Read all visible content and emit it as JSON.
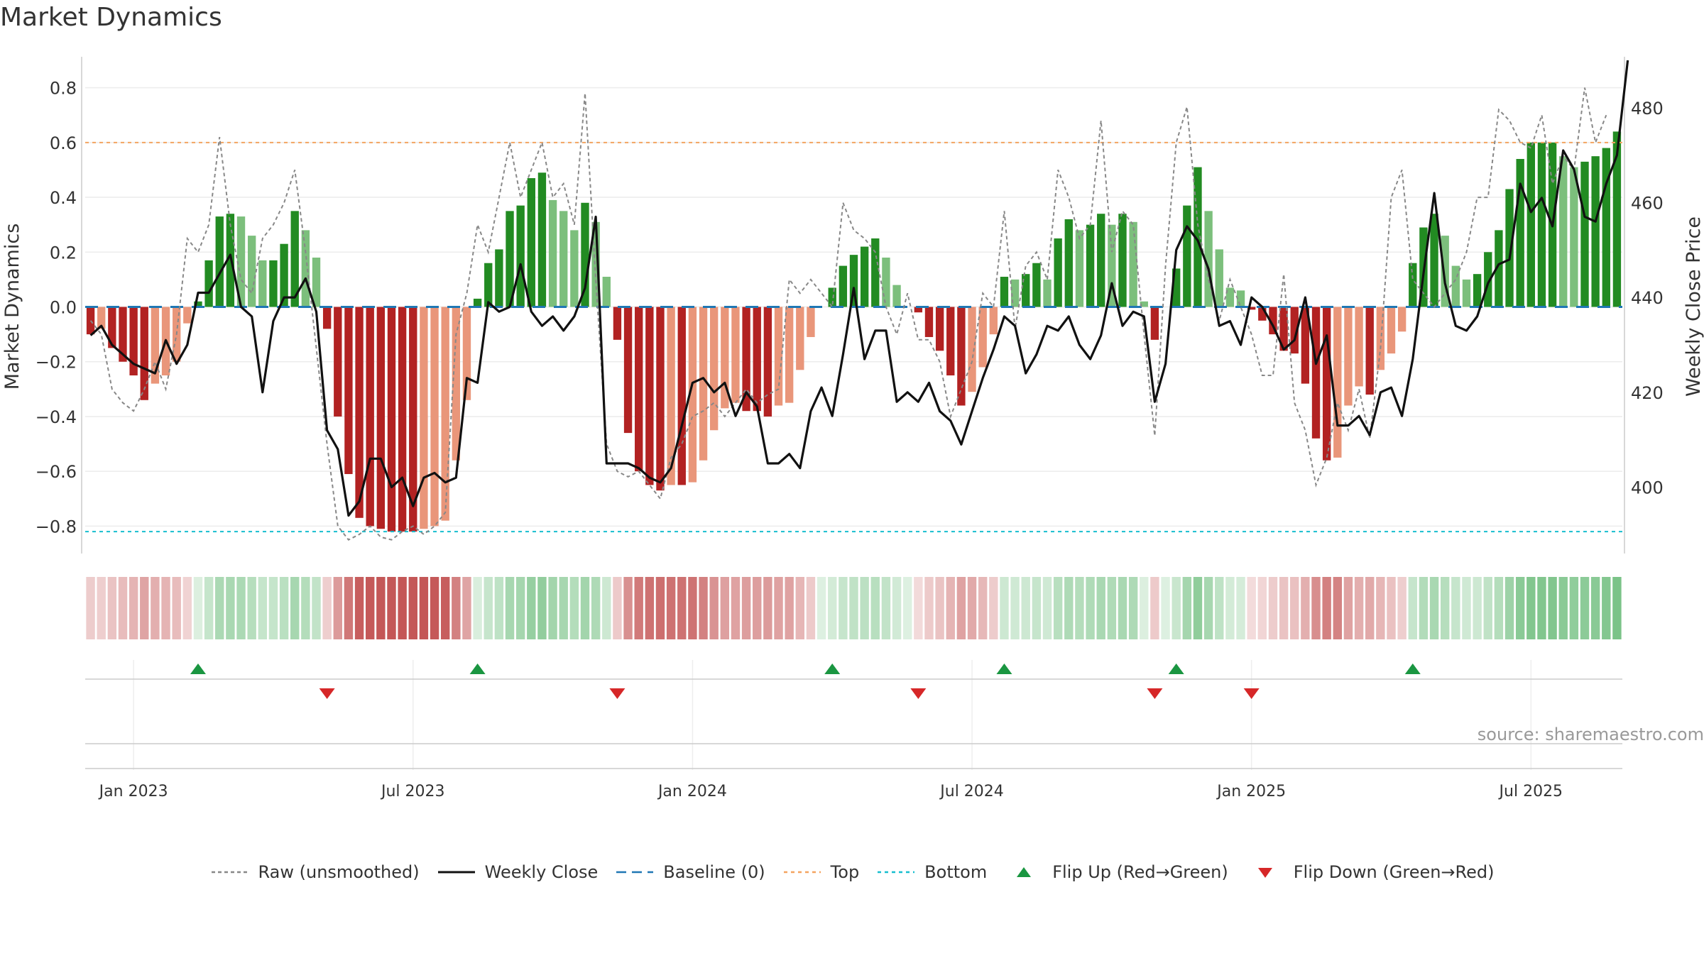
{
  "title": "Market Dynamics",
  "source": "source: sharemaestro.com",
  "colors": {
    "strong_green": "#228b22",
    "light_green": "#7cbf7c",
    "strong_red": "#b22222",
    "light_red": "#e9967a",
    "raw": "#888888",
    "close": "#111111",
    "baseline": "#1f77b4",
    "top": "#f4a460",
    "bottom": "#17becf",
    "flip_up": "#1a9641",
    "flip_down": "#d62728"
  },
  "legend": [
    {
      "key": "raw",
      "label": "Raw (unsmoothed)"
    },
    {
      "key": "close",
      "label": "Weekly Close"
    },
    {
      "key": "baseline",
      "label": "Baseline (0)"
    },
    {
      "key": "top",
      "label": "Top"
    },
    {
      "key": "bottom",
      "label": "Bottom"
    },
    {
      "key": "flip_up",
      "label": "Flip Up (Red→Green)"
    },
    {
      "key": "flip_down",
      "label": "Flip Down (Green→Red)"
    }
  ],
  "chart_data": {
    "type": "bar",
    "title": "Market Dynamics",
    "ylabel": "Market Dynamics",
    "y2label": "Weekly Close Price",
    "ylim": [
      -0.9,
      0.9
    ],
    "y2lim": [
      386,
      490
    ],
    "yticks": [
      -0.8,
      -0.6,
      -0.4,
      -0.2,
      0,
      0.2,
      0.4,
      0.6,
      0.8
    ],
    "y2ticks": [
      400,
      420,
      440,
      460,
      480
    ],
    "top_threshold": 0.6,
    "bottom_threshold": -0.82,
    "baseline": 0,
    "x_ticks": [
      {
        "label": "Jan 2023",
        "index": 4
      },
      {
        "label": "Jul 2023",
        "index": 30
      },
      {
        "label": "Jan 2024",
        "index": 56
      },
      {
        "label": "Jul 2024",
        "index": 82
      },
      {
        "label": "Jan 2025",
        "index": 108
      },
      {
        "label": "Jul 2025",
        "index": 134
      }
    ],
    "dynamics": [
      -0.1,
      -0.08,
      -0.15,
      -0.2,
      -0.25,
      -0.34,
      -0.28,
      -0.25,
      -0.2,
      -0.06,
      0.02,
      0.17,
      0.33,
      0.34,
      0.33,
      0.26,
      0.17,
      0.17,
      0.23,
      0.35,
      0.28,
      0.18,
      -0.08,
      -0.4,
      -0.61,
      -0.77,
      -0.8,
      -0.81,
      -0.82,
      -0.82,
      -0.82,
      -0.81,
      -0.8,
      -0.78,
      -0.56,
      -0.34,
      0.03,
      0.16,
      0.21,
      0.35,
      0.37,
      0.47,
      0.49,
      0.39,
      0.35,
      0.28,
      0.38,
      0.31,
      0.11,
      -0.12,
      -0.46,
      -0.6,
      -0.65,
      -0.67,
      -0.65,
      -0.65,
      -0.64,
      -0.56,
      -0.45,
      -0.37,
      -0.35,
      -0.38,
      -0.38,
      -0.4,
      -0.36,
      -0.35,
      -0.23,
      -0.11,
      0.0,
      0.07,
      0.15,
      0.19,
      0.22,
      0.25,
      0.18,
      0.08,
      0.0,
      -0.02,
      -0.11,
      -0.16,
      -0.25,
      -0.36,
      -0.31,
      -0.22,
      -0.1,
      0.11,
      0.1,
      0.12,
      0.16,
      0.1,
      0.25,
      0.32,
      0.28,
      0.3,
      0.34,
      0.3,
      0.34,
      0.31,
      0.02,
      -0.12,
      0.0,
      0.14,
      0.37,
      0.51,
      0.35,
      0.21,
      0.07,
      0.06,
      -0.01,
      -0.05,
      -0.1,
      -0.16,
      -0.17,
      -0.28,
      -0.48,
      -0.56,
      -0.55,
      -0.36,
      -0.29,
      -0.32,
      -0.23,
      -0.17,
      -0.09,
      0.16,
      0.29,
      0.34,
      0.26,
      0.15,
      0.1,
      0.12,
      0.2,
      0.28,
      0.43,
      0.54,
      0.6,
      0.6,
      0.6,
      0.55,
      0.51,
      0.53,
      0.55,
      0.58,
      0.64
    ],
    "raw": [
      -0.05,
      -0.1,
      -0.3,
      -0.35,
      -0.38,
      -0.3,
      -0.2,
      -0.3,
      -0.1,
      0.25,
      0.2,
      0.3,
      0.62,
      0.3,
      0.1,
      0.05,
      0.25,
      0.3,
      0.38,
      0.5,
      0.2,
      -0.15,
      -0.5,
      -0.8,
      -0.85,
      -0.83,
      -0.8,
      -0.84,
      -0.85,
      -0.82,
      -0.8,
      -0.83,
      -0.8,
      -0.75,
      -0.1,
      0.05,
      0.3,
      0.2,
      0.4,
      0.6,
      0.4,
      0.5,
      0.6,
      0.4,
      0.45,
      0.3,
      0.78,
      0.1,
      -0.5,
      -0.6,
      -0.62,
      -0.6,
      -0.65,
      -0.7,
      -0.55,
      -0.5,
      -0.4,
      -0.38,
      -0.35,
      -0.4,
      -0.35,
      -0.3,
      -0.35,
      -0.32,
      -0.3,
      0.1,
      0.05,
      0.1,
      0.05,
      0.0,
      0.38,
      0.28,
      0.25,
      0.2,
      0.0,
      -0.1,
      0.05,
      -0.12,
      -0.12,
      -0.2,
      -0.4,
      -0.3,
      -0.2,
      0.05,
      0.0,
      0.35,
      -0.08,
      0.15,
      0.2,
      0.1,
      0.5,
      0.4,
      0.25,
      0.3,
      0.68,
      0.2,
      0.35,
      0.3,
      -0.1,
      -0.47,
      0.15,
      0.6,
      0.73,
      0.3,
      0.1,
      -0.05,
      0.1,
      0.0,
      -0.1,
      -0.25,
      -0.25,
      0.12,
      -0.35,
      -0.45,
      -0.65,
      -0.55,
      -0.35,
      -0.45,
      -0.3,
      -0.48,
      -0.15,
      0.4,
      0.5,
      0.1,
      0.05,
      0.0,
      0.05,
      0.1,
      0.2,
      0.4,
      0.4,
      0.72,
      0.68,
      0.6,
      0.58,
      0.7,
      0.45,
      0.55,
      0.5,
      0.8,
      0.6,
      0.7
    ],
    "close": [
      432,
      434,
      430,
      428,
      426,
      425,
      424,
      431,
      426,
      430,
      441,
      441,
      445,
      449,
      438,
      436,
      420,
      435,
      440,
      440,
      444,
      437,
      412,
      408,
      394,
      397,
      406,
      406,
      400,
      402,
      396,
      402,
      403,
      401,
      402,
      423,
      422,
      439,
      437,
      438,
      447,
      437,
      434,
      436,
      433,
      436,
      442,
      457,
      405,
      405,
      405,
      404,
      402,
      401,
      404,
      413,
      422,
      423,
      420,
      422,
      415,
      420,
      417,
      405,
      405,
      407,
      404,
      416,
      421,
      415,
      428,
      442,
      427,
      433,
      433,
      418,
      420,
      418,
      422,
      416,
      414,
      409,
      416,
      423,
      429,
      436,
      434,
      424,
      428,
      434,
      433,
      436,
      430,
      427,
      432,
      443,
      434,
      437,
      436,
      418,
      426,
      450,
      455,
      452,
      446,
      434,
      435,
      430,
      440,
      438,
      434,
      429,
      431,
      440,
      426,
      432,
      413,
      413,
      415,
      411,
      420,
      421,
      415,
      427,
      445,
      462,
      443,
      434,
      433,
      436,
      443,
      447,
      448,
      464,
      458,
      461,
      455,
      471,
      467,
      457,
      456,
      464,
      470,
      490
    ]
  }
}
